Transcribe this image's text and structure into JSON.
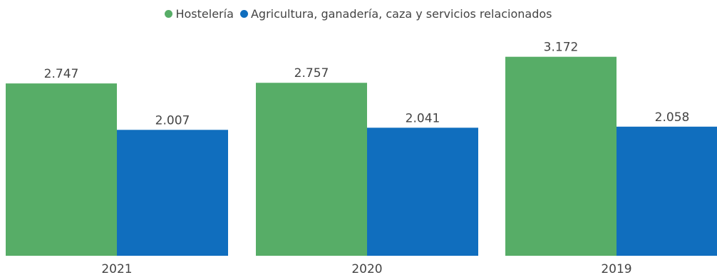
{
  "chart_data": {
    "type": "bar",
    "title": "",
    "xlabel": "",
    "ylabel": "",
    "categories": [
      "2021",
      "2020",
      "2019"
    ],
    "series": [
      {
        "name": "Hostelería",
        "color": "#57AD67",
        "values": [
          2.747,
          2.757,
          3.172
        ],
        "labels": [
          "2.747",
          "2.757",
          "3.172"
        ]
      },
      {
        "name": "Agricultura, ganadería, caza y servicios relacionados",
        "color": "#106EBE",
        "values": [
          2.007,
          2.041,
          2.058
        ],
        "labels": [
          "2.007",
          "2.041",
          "2.058"
        ]
      }
    ],
    "ylim": [
      0,
      3.6
    ],
    "grid": false,
    "legend": "top-center"
  }
}
